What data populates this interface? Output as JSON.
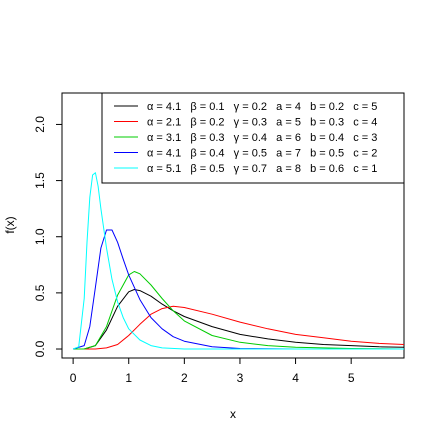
{
  "chart_data": {
    "type": "line",
    "title": "",
    "xlabel": "x",
    "ylabel": "f(x)",
    "xlim": [
      -0.2,
      5.95
    ],
    "ylim": [
      -0.08,
      2.28
    ],
    "xticks": [
      0,
      1,
      2,
      3,
      4,
      5
    ],
    "yticks": [
      0.0,
      0.5,
      1.0,
      1.5,
      2.0
    ],
    "xtick_labels": [
      "0",
      "1",
      "2",
      "3",
      "4",
      "5"
    ],
    "ytick_labels": [
      "0.0",
      "0.5",
      "1.0",
      "1.5",
      "2.0"
    ],
    "grid": false,
    "legend_position": "top-right",
    "series": [
      {
        "legend_label": "α = 4.1   β = 0.1   γ = 0.2   a = 4   b = 0.2   c = 5",
        "color": "#000000",
        "x": [
          0.0,
          0.2,
          0.4,
          0.6,
          0.8,
          1.0,
          1.1,
          1.2,
          1.4,
          1.6,
          1.8,
          2.0,
          2.5,
          3.0,
          3.5,
          4.0,
          4.5,
          5.0,
          5.5,
          5.95
        ],
        "y": [
          0.0,
          0.0,
          0.03,
          0.17,
          0.38,
          0.51,
          0.53,
          0.52,
          0.47,
          0.4,
          0.34,
          0.29,
          0.2,
          0.13,
          0.09,
          0.06,
          0.04,
          0.03,
          0.02,
          0.015
        ]
      },
      {
        "legend_label": "α = 2.1   β = 0.2   γ = 0.3   a = 5   b = 0.3   c = 4",
        "color": "#ff0000",
        "x": [
          0.0,
          0.4,
          0.6,
          0.8,
          1.0,
          1.2,
          1.4,
          1.6,
          1.8,
          2.0,
          2.5,
          3.0,
          3.5,
          4.0,
          4.5,
          5.0,
          5.5,
          5.95
        ],
        "y": [
          0.0,
          0.0,
          0.01,
          0.04,
          0.12,
          0.22,
          0.31,
          0.36,
          0.38,
          0.37,
          0.31,
          0.24,
          0.18,
          0.13,
          0.1,
          0.07,
          0.05,
          0.04
        ]
      },
      {
        "legend_label": "α = 3.1   β = 0.3   γ = 0.4   a = 6   b = 0.4   c = 3",
        "color": "#00cc00",
        "x": [
          0.0,
          0.2,
          0.4,
          0.6,
          0.8,
          1.0,
          1.1,
          1.2,
          1.4,
          1.6,
          1.8,
          2.0,
          2.5,
          3.0,
          3.5,
          4.0,
          4.5,
          5.0,
          5.95
        ],
        "y": [
          0.0,
          0.0,
          0.03,
          0.2,
          0.48,
          0.66,
          0.69,
          0.67,
          0.57,
          0.45,
          0.34,
          0.25,
          0.12,
          0.06,
          0.03,
          0.015,
          0.01,
          0.005,
          0.0
        ]
      },
      {
        "legend_label": "α = 4.1   β = 0.4   γ = 0.5   a = 7   b = 0.5   c = 2",
        "color": "#0000ff",
        "x": [
          0.0,
          0.2,
          0.3,
          0.4,
          0.5,
          0.6,
          0.7,
          0.8,
          0.9,
          1.0,
          1.2,
          1.4,
          1.6,
          1.8,
          2.0,
          2.5,
          3.0,
          3.5,
          4.0,
          5.95
        ],
        "y": [
          0.0,
          0.03,
          0.2,
          0.55,
          0.9,
          1.06,
          1.06,
          0.95,
          0.8,
          0.66,
          0.44,
          0.28,
          0.18,
          0.11,
          0.07,
          0.02,
          0.005,
          0.002,
          0.0,
          0.0
        ]
      },
      {
        "legend_label": "α = 5.1   β = 0.5   γ = 0.7   a = 8   b = 0.6   c = 1",
        "color": "#00ffff",
        "x": [
          0.0,
          0.1,
          0.2,
          0.25,
          0.3,
          0.35,
          0.4,
          0.45,
          0.5,
          0.6,
          0.7,
          0.8,
          0.9,
          1.0,
          1.2,
          1.4,
          1.6,
          2.0,
          2.5,
          5.95
        ],
        "y": [
          0.0,
          0.02,
          0.45,
          0.95,
          1.35,
          1.55,
          1.57,
          1.45,
          1.25,
          0.9,
          0.62,
          0.42,
          0.28,
          0.18,
          0.08,
          0.03,
          0.01,
          0.0,
          0.0,
          0.0
        ]
      }
    ]
  }
}
